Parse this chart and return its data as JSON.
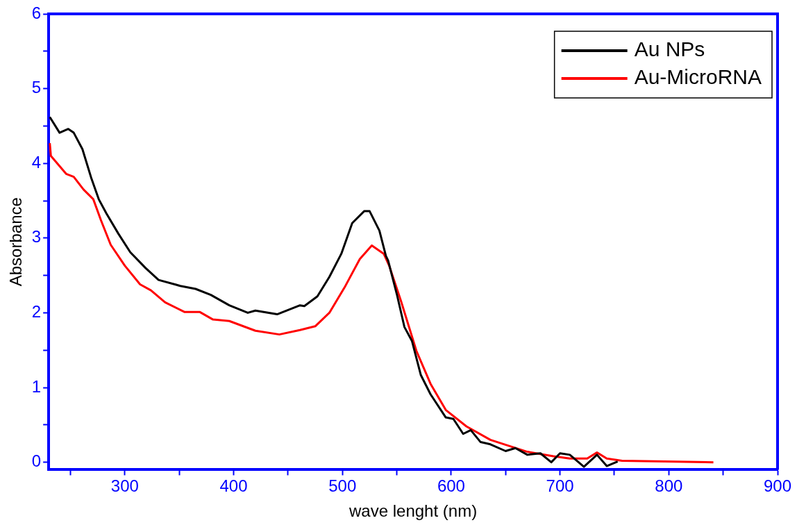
{
  "chart_data": {
    "type": "line",
    "xlabel": "wave lenght (nm)",
    "ylabel": "Absorbance",
    "xlim": [
      230,
      900
    ],
    "ylim": [
      -0.1,
      6
    ],
    "xticks": [
      {
        "value": 250,
        "label": null
      },
      300,
      {
        "value": 350,
        "label": null
      },
      400,
      {
        "value": 450,
        "label": null
      },
      500,
      {
        "value": 550,
        "label": null
      },
      600,
      {
        "value": 650,
        "label": null
      },
      700,
      {
        "value": 750,
        "label": null
      },
      800,
      {
        "value": 850,
        "label": null
      },
      900
    ],
    "yticks": [
      0,
      {
        "value": 0.5,
        "label": null
      },
      1,
      {
        "value": 1.5,
        "label": null
      },
      2,
      {
        "value": 2.5,
        "label": null
      },
      3,
      {
        "value": 3.5,
        "label": null
      },
      4,
      {
        "value": 4.5,
        "label": null
      },
      5,
      {
        "value": 5.5,
        "label": null
      },
      6
    ],
    "grid": false,
    "legend": "top right",
    "marker": "none",
    "line_style": "solid",
    "series": [
      {
        "name": "Au NPs",
        "color": "#000000",
        "x": [
          231,
          240,
          248,
          253,
          261,
          269,
          276,
          283,
          294,
          305,
          319,
          331,
          351,
          365,
          379,
          396,
          413,
          420,
          440,
          461,
          465,
          477,
          488,
          499,
          509,
          520,
          525,
          534,
          540,
          542,
          550,
          557,
          564,
          572,
          581,
          595,
          602,
          611,
          618,
          627,
          636,
          650,
          659,
          670,
          682,
          692,
          700,
          709,
          722,
          734,
          743,
          753
        ],
        "values": [
          4.62,
          4.41,
          4.46,
          4.41,
          4.19,
          3.81,
          3.52,
          3.33,
          3.06,
          2.81,
          2.6,
          2.44,
          2.36,
          2.32,
          2.24,
          2.1,
          2.0,
          2.03,
          1.98,
          2.1,
          2.09,
          2.22,
          2.48,
          2.79,
          3.2,
          3.36,
          3.36,
          3.1,
          2.76,
          2.7,
          2.25,
          1.81,
          1.62,
          1.17,
          0.91,
          0.6,
          0.58,
          0.38,
          0.43,
          0.27,
          0.24,
          0.15,
          0.19,
          0.1,
          0.12,
          0.0,
          0.12,
          0.1,
          -0.06,
          0.1,
          -0.05,
          0.01
        ]
      },
      {
        "name": "Au-MicroRNA",
        "color": "#ff0000",
        "x": [
          231,
          232,
          246,
          253,
          262,
          271,
          278,
          287,
          300,
          314,
          324,
          337,
          355,
          369,
          381,
          396,
          420,
          442,
          461,
          475,
          488,
          502,
          516,
          527,
          538,
          543,
          554,
          568,
          581,
          595,
          614,
          636,
          670,
          694,
          709,
          725,
          734,
          743,
          757,
          841
        ],
        "values": [
          4.27,
          4.1,
          3.86,
          3.82,
          3.65,
          3.52,
          3.24,
          2.91,
          2.63,
          2.38,
          2.3,
          2.14,
          2.01,
          2.01,
          1.91,
          1.89,
          1.76,
          1.71,
          1.77,
          1.82,
          2.0,
          2.34,
          2.72,
          2.9,
          2.79,
          2.63,
          2.15,
          1.49,
          1.05,
          0.7,
          0.48,
          0.3,
          0.14,
          0.08,
          0.05,
          0.05,
          0.13,
          0.05,
          0.02,
          0.0
        ]
      }
    ]
  }
}
